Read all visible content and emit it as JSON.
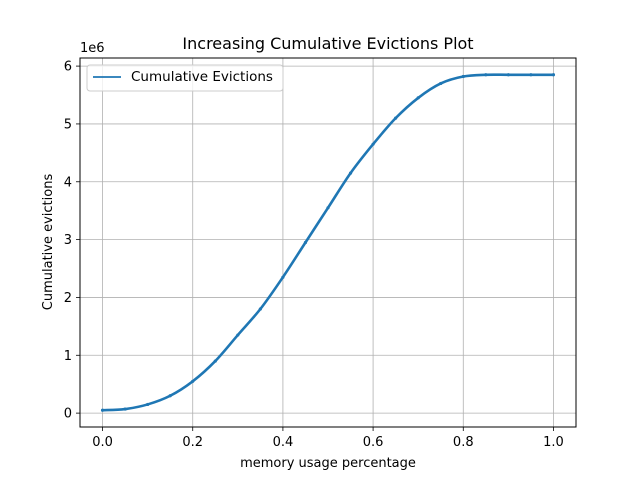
{
  "chart_data": {
    "type": "line",
    "title": "Increasing Cumulative Evictions Plot",
    "xlabel": "memory usage percentage",
    "ylabel": "Cumulative evictions",
    "y_offset_label": "1e6",
    "xlim": [
      -0.05,
      1.05
    ],
    "ylim": [
      -0.24,
      6.14
    ],
    "x_ticks": [
      0.0,
      0.2,
      0.4,
      0.6,
      0.8,
      1.0
    ],
    "x_tick_labels": [
      "0.0",
      "0.2",
      "0.4",
      "0.6",
      "0.8",
      "1.0"
    ],
    "y_ticks": [
      0,
      1,
      2,
      3,
      4,
      5,
      6
    ],
    "y_tick_labels": [
      "0",
      "1",
      "2",
      "3",
      "4",
      "5",
      "6"
    ],
    "grid": true,
    "legend_position": "upper-left",
    "series": [
      {
        "name": "Cumulative Evictions",
        "color": "#1f77b4",
        "x": [
          0.0,
          0.05,
          0.1,
          0.15,
          0.2,
          0.25,
          0.3,
          0.35,
          0.4,
          0.45,
          0.5,
          0.55,
          0.6,
          0.65,
          0.7,
          0.75,
          0.8,
          0.85,
          0.9,
          0.95,
          1.0
        ],
        "y": [
          0.05,
          0.07,
          0.15,
          0.3,
          0.55,
          0.9,
          1.35,
          1.8,
          2.35,
          2.95,
          3.55,
          4.15,
          4.65,
          5.1,
          5.45,
          5.7,
          5.82,
          5.85,
          5.85,
          5.85,
          5.85
        ]
      }
    ]
  }
}
